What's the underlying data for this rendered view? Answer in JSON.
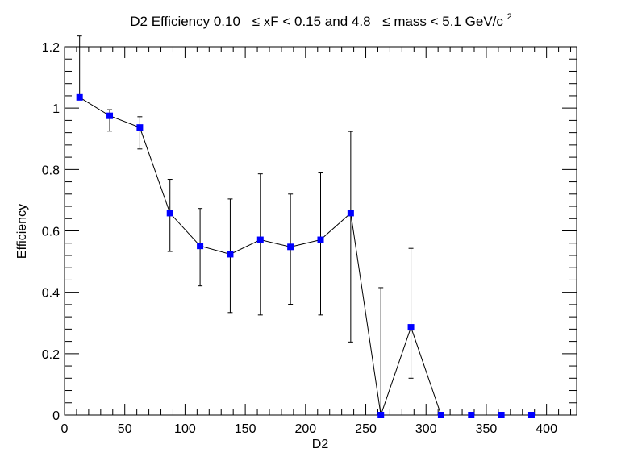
{
  "chart_data": {
    "type": "scatter",
    "title": {
      "lead": "D2 Efficiency 0.10",
      "mid1": "≤ xF < 0.15 and 4.8",
      "mid2": "≤ mass < 5.1 GeV/c",
      "sup": "2"
    },
    "xlabel": "D2",
    "ylabel": "Efficiency",
    "xlim": [
      0,
      425
    ],
    "ylim": [
      0,
      1.2
    ],
    "xticks": [
      0,
      50,
      100,
      150,
      200,
      250,
      300,
      350,
      400
    ],
    "yticks": [
      0,
      0.2,
      0.4,
      0.6,
      0.8,
      1,
      1.2
    ],
    "xtick_labels": [
      "0",
      "50",
      "100",
      "150",
      "200",
      "250",
      "300",
      "350",
      "400"
    ],
    "ytick_labels": [
      "0",
      "0.2",
      "0.4",
      "0.6",
      "0.8",
      "1",
      "1.2"
    ],
    "grid": false,
    "legend": "none",
    "colors": {
      "marker": "#0000ff",
      "line": "#000000",
      "error": "#000000"
    },
    "series": [
      {
        "x": [
          12.5,
          37.5,
          62.5,
          87.5,
          112.5,
          137.5,
          162.5,
          187.5,
          212.5,
          237.5,
          262.5,
          287.5,
          312.5,
          337.5,
          362.5,
          387.5
        ],
        "y": [
          1.035,
          0.975,
          0.937,
          0.658,
          0.551,
          0.524,
          0.571,
          0.548,
          0.571,
          0.658,
          0.0,
          0.286,
          0.0,
          0.0,
          0.0,
          0.0
        ],
        "y_err_low": [
          0.0,
          0.05,
          0.07,
          0.125,
          0.13,
          0.19,
          0.245,
          0.187,
          0.245,
          0.42,
          0.0,
          0.166,
          0.0,
          0.0,
          0.0,
          0.0
        ],
        "y_err_high": [
          0.2,
          0.02,
          0.035,
          0.11,
          0.122,
          0.18,
          0.215,
          0.172,
          0.218,
          0.266,
          0.415,
          0.257,
          0.0,
          0.0,
          0.0,
          0.0
        ]
      }
    ]
  }
}
